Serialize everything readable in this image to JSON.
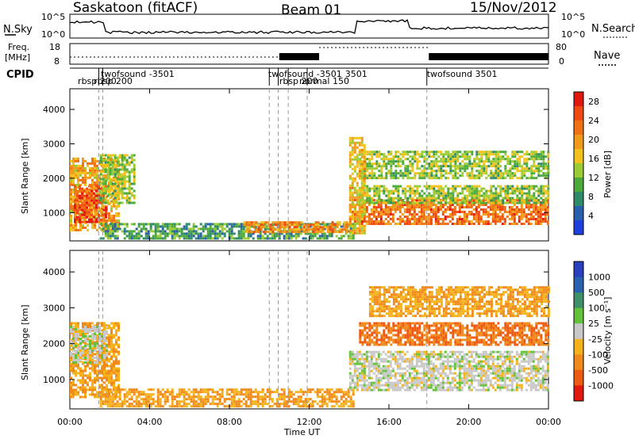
{
  "header": {
    "title": "Saskatoon (fitACF)",
    "beam": "Beam 01",
    "date": "15/Nov/2012"
  },
  "panels": {
    "nsky_label": "N.Sky",
    "nsearch_label": "N.Search",
    "nsky_ticks": [
      "10^5",
      "10^0"
    ],
    "nsearch_ticks": [
      "10^5",
      "10^0"
    ],
    "freq_label_1": "Freq.",
    "freq_label_2": "[MHz]",
    "freq_ticks": [
      "18",
      "8"
    ],
    "nave_label": "Nave",
    "nave_ticks": [
      "80",
      "0"
    ],
    "cpid_label": "CPID",
    "cpid_items": [
      {
        "text": "rbsp 200",
        "hour": 0.4,
        "row": 1
      },
      {
        "text": "rbsp 200",
        "hour": 1.2,
        "row": 1
      },
      {
        "text": "twofsound  -3501",
        "hour": 1.55,
        "row": 0
      },
      {
        "text": "twofsound -3501",
        "hour": 9.95,
        "row": 0
      },
      {
        "text": "rbsp 200",
        "hour": 10.5,
        "row": 1
      },
      {
        "text": "normal 150",
        "hour": 11.5,
        "row": 1
      },
      {
        "text": "3501",
        "hour": 13.8,
        "row": 0
      },
      {
        "text": "twofsound 3501",
        "hour": 17.9,
        "row": 0
      }
    ],
    "cpid_changes_hours": [
      1.45,
      1.65,
      10.0,
      10.45,
      10.95,
      11.9,
      17.9
    ]
  },
  "axes": {
    "xlabel": "Time UT",
    "ylabel": "Slant Range [km]",
    "x_ticks": [
      "00:00",
      "04:00",
      "08:00",
      "12:00",
      "16:00",
      "20:00",
      "00:00"
    ],
    "y_ticks": [
      "1000",
      "2000",
      "3000",
      "4000"
    ]
  },
  "colorbars": {
    "power": {
      "label": "Power [dB]",
      "ticks": [
        "4",
        "8",
        "12",
        "16",
        "20",
        "24",
        "28"
      ],
      "colors": [
        "#1f3fe0",
        "#2a5fb0",
        "#2f8a6a",
        "#4daa3a",
        "#9ccc33",
        "#f2c21c",
        "#f39a1a",
        "#f07313",
        "#ee4a12",
        "#e01a10"
      ]
    },
    "velocity": {
      "label": "Velocity [m s⁻¹]",
      "ticks": [
        "1000",
        "500",
        "100",
        "25",
        "-25",
        "-100",
        "-500",
        "-1000"
      ],
      "colors": [
        "#2a3fbf",
        "#2a60b0",
        "#3f8f6a",
        "#63c23a",
        "#c8c8c8",
        "#f5b21a",
        "#f08a1a",
        "#ee5a12",
        "#e01a10"
      ]
    }
  },
  "chart_data": [
    {
      "type": "heatmap",
      "title": "Power [dB]",
      "xlabel": "Time UT",
      "ylabel": "Slant Range [km]",
      "xlim": [
        0,
        24
      ],
      "ylim": [
        180,
        4600
      ],
      "features": [
        {
          "hours": [
            0.0,
            2.5
          ],
          "range_km": [
            500,
            2600
          ],
          "power_db": 20
        },
        {
          "hours": [
            0.2,
            1.8
          ],
          "range_km": [
            700,
            1800
          ],
          "power_db": 26
        },
        {
          "hours": [
            1.5,
            3.2
          ],
          "range_km": [
            1300,
            2700
          ],
          "power_db": 14
        },
        {
          "hours": [
            1.5,
            14.2
          ],
          "range_km": [
            250,
            700
          ],
          "power_db": 10
        },
        {
          "hours": [
            8.7,
            14.0
          ],
          "range_km": [
            450,
            750
          ],
          "power_db": 22
        },
        {
          "hours": [
            14.0,
            24.0
          ],
          "range_km": [
            700,
            1400
          ],
          "power_db": 24
        },
        {
          "hours": [
            14.5,
            24.0
          ],
          "range_km": [
            1300,
            1800
          ],
          "power_db": 14
        },
        {
          "hours": [
            14.5,
            24.0
          ],
          "range_km": [
            2000,
            2800
          ],
          "power_db": 14
        },
        {
          "hours": [
            14.0,
            14.8
          ],
          "range_km": [
            400,
            3200
          ],
          "power_db": 18
        }
      ]
    },
    {
      "type": "heatmap",
      "title": "Velocity [m s⁻¹]",
      "xlabel": "Time UT",
      "ylabel": "Slant Range [km]",
      "xlim": [
        0,
        24
      ],
      "ylim": [
        180,
        4600
      ],
      "features": [
        {
          "hours": [
            0.0,
            2.5
          ],
          "range_km": [
            500,
            2600
          ],
          "velocity": -100
        },
        {
          "hours": [
            0.0,
            1.8
          ],
          "range_km": [
            1500,
            2500
          ],
          "velocity": 0
        },
        {
          "hours": [
            1.5,
            14.2
          ],
          "range_km": [
            250,
            750
          ],
          "velocity": -100
        },
        {
          "hours": [
            14.0,
            24.0
          ],
          "range_km": [
            700,
            1800
          ],
          "velocity": 0
        },
        {
          "hours": [
            14.5,
            24.0
          ],
          "range_km": [
            2000,
            2600
          ],
          "velocity": -500
        },
        {
          "hours": [
            15.0,
            24.0
          ],
          "range_km": [
            2800,
            3600
          ],
          "velocity": -100
        }
      ]
    }
  ]
}
